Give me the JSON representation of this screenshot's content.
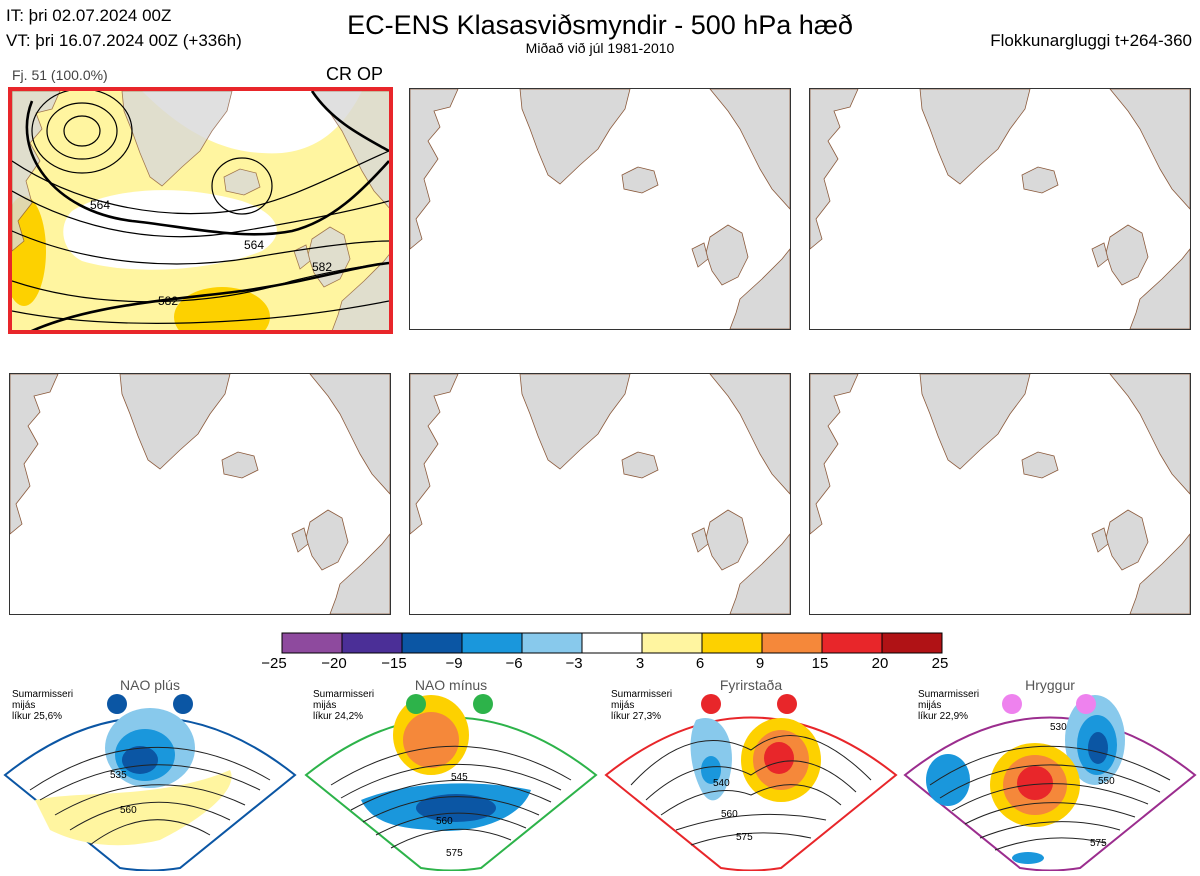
{
  "header": {
    "it_line": "IT: þri 02.07.2024 00Z",
    "vt_line": "VT: þri 16.07.2024 00Z  (+336h)",
    "title": "EC-ENS Klasasviðsmyndir - 500 hPa hæð",
    "subtitle": "Miðað við júl 1981-2010",
    "window_label": "Flokkunargluggi t+264-360"
  },
  "panel_info": {
    "label": "Fj. 51 (100.0%)",
    "regime": "CR OP",
    "contour_labels": [
      "564",
      "564",
      "582",
      "582"
    ]
  },
  "colorbar": {
    "ticks": [
      "−25",
      "−20",
      "−15",
      "−9",
      "−6",
      "−3",
      "3",
      "6",
      "9",
      "15",
      "20",
      "25"
    ],
    "colors": [
      "#8e4a9e",
      "#4b2f97",
      "#0b56a4",
      "#1a97dc",
      "#88c9ec",
      "#ffffff",
      "#fff5a0",
      "#fdd100",
      "#f5883a",
      "#e8262a",
      "#b01215"
    ]
  },
  "regimes": [
    {
      "name": "NAO plús",
      "season": "Sumarmisseri",
      "mean": "mijás",
      "prob": "líkur 25,6%",
      "color": "#0b56a4",
      "labels": [
        "535",
        "560"
      ]
    },
    {
      "name": "NAO mínus",
      "season": "Sumarmisseri",
      "mean": "mijás",
      "prob": "líkur 24,2%",
      "color": "#2db34a",
      "labels": [
        "545",
        "560",
        "575"
      ]
    },
    {
      "name": "Fyrirstaða",
      "season": "Sumarmisseri",
      "mean": "mijás",
      "prob": "líkur 27,3%",
      "color": "#e8262a",
      "labels": [
        "540",
        "560",
        "575"
      ]
    },
    {
      "name": "Hryggur",
      "season": "Sumarmisseri",
      "mean": "mijás",
      "prob": "líkur 22,9%",
      "color": "#9b2d8e",
      "labels": [
        "530",
        "550",
        "575"
      ]
    }
  ]
}
